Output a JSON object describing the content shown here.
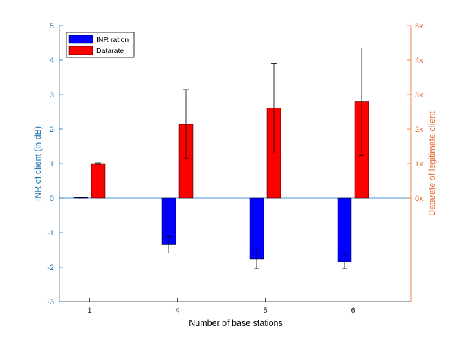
{
  "chart_data": {
    "type": "bar",
    "categories": [
      "1",
      "4",
      "5",
      "6"
    ],
    "xlabel": "Number of base stations",
    "ylabel_left": "INR of client (in dB)",
    "ylabel_right": "Datarate of legitimate client",
    "ylim_left": [
      -3,
      5
    ],
    "yticks_left": [
      "-3",
      "-2",
      "-1",
      "0",
      "1",
      "2",
      "3",
      "4",
      "5"
    ],
    "ylim_right": [
      0,
      5
    ],
    "yticks_right": [
      "0x",
      "1x",
      "2x",
      "3x",
      "4x",
      "5x"
    ],
    "grid": false,
    "legend_position": "top-left",
    "series": [
      {
        "name": "INR ration",
        "axis": "left",
        "color": "#0000ff",
        "values": [
          0.02,
          -1.35,
          -1.76,
          -1.84
        ],
        "error_low": [
          0.0,
          -1.59,
          -2.04,
          -2.04
        ],
        "error_high": [
          0.03,
          -1.11,
          -1.48,
          -1.64
        ]
      },
      {
        "name": "Datarate",
        "axis": "right",
        "color": "#ff0000",
        "values": [
          1.0,
          2.14,
          2.61,
          2.79
        ],
        "error_low": [
          0.98,
          1.14,
          1.31,
          1.23
        ],
        "error_high": [
          1.02,
          3.14,
          3.91,
          4.35
        ]
      }
    ],
    "colors": {
      "left_axis": "#1f77b4",
      "right_axis": "#e8692e",
      "zero_line": "#4a90d9"
    }
  }
}
